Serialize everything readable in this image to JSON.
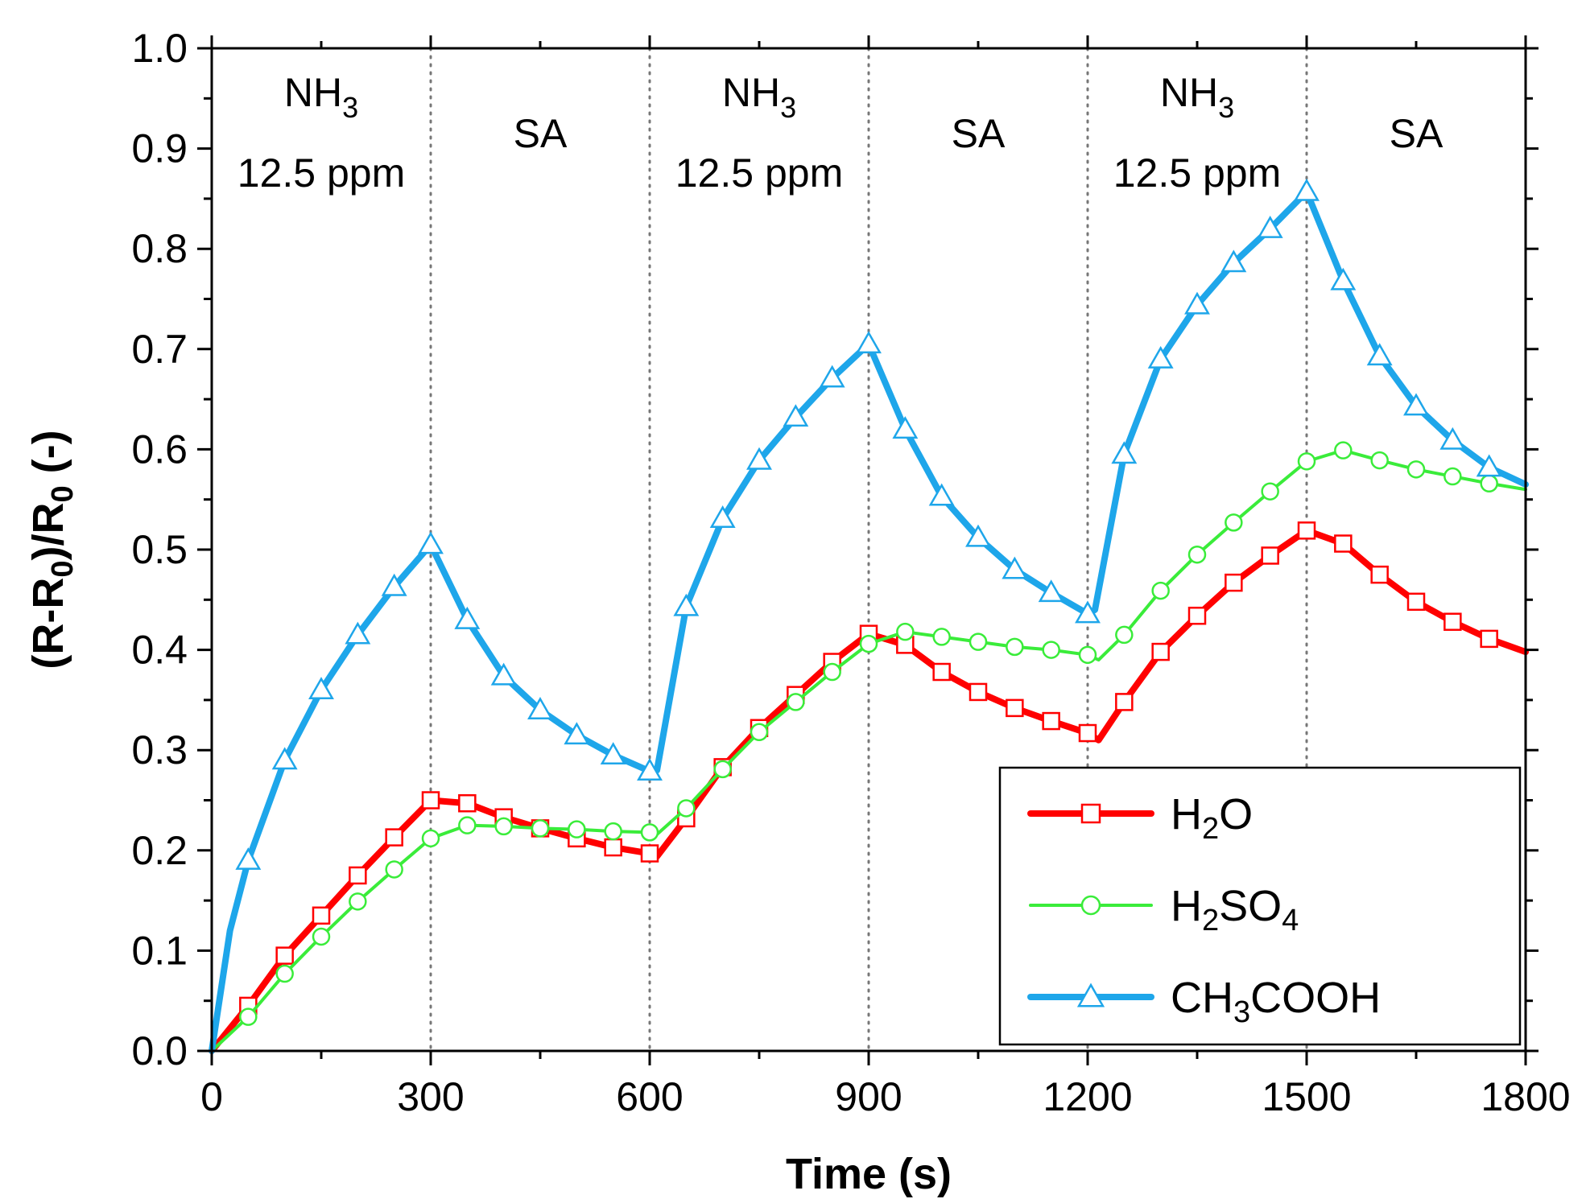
{
  "chart_data": {
    "type": "line",
    "title": "",
    "xlabel": "Time (s)",
    "ylabel": {
      "parts": [
        "(R-R",
        "0",
        ")/R",
        "0",
        " (-)"
      ]
    },
    "xlim": [
      0,
      1800
    ],
    "ylim": [
      0,
      1.0
    ],
    "xticks": [
      "0",
      "300",
      "600",
      "900",
      "1200",
      "1500",
      "1800"
    ],
    "yticks": [
      "0.0",
      "0.1",
      "0.2",
      "0.3",
      "0.4",
      "0.5",
      "0.6",
      "0.7",
      "0.8",
      "0.9",
      "1.0"
    ],
    "phase_boundaries": [
      300,
      600,
      900,
      1200,
      1500
    ],
    "phases": [
      {
        "gas": "NH",
        "sub": "3",
        "conc": "12.5 ppm",
        "x": 150
      },
      {
        "gas": "SA",
        "sub": "",
        "conc": "",
        "x": 450
      },
      {
        "gas": "NH",
        "sub": "3",
        "conc": "12.5 ppm",
        "x": 750
      },
      {
        "gas": "SA",
        "sub": "",
        "conc": "",
        "x": 1050
      },
      {
        "gas": "NH",
        "sub": "3",
        "conc": "12.5 ppm",
        "x": 1350
      },
      {
        "gas": "SA",
        "sub": "",
        "conc": "",
        "x": 1650
      }
    ],
    "legend_position": "lower-right",
    "series": [
      {
        "name": "H2O",
        "label_parts": [
          "H",
          "2",
          "O"
        ],
        "color": "#ff0000",
        "marker": "square",
        "x": [
          0,
          50,
          100,
          150,
          200,
          250,
          300,
          350,
          400,
          450,
          500,
          550,
          600,
          610,
          650,
          700,
          750,
          800,
          850,
          900,
          950,
          1000,
          1050,
          1100,
          1150,
          1200,
          1215,
          1250,
          1300,
          1350,
          1400,
          1450,
          1500,
          1550,
          1600,
          1650,
          1700,
          1750,
          1800
        ],
        "values": [
          0.0,
          0.045,
          0.095,
          0.135,
          0.175,
          0.213,
          0.25,
          0.247,
          0.233,
          0.222,
          0.212,
          0.203,
          0.197,
          0.194,
          0.232,
          0.283,
          0.322,
          0.355,
          0.388,
          0.416,
          0.405,
          0.378,
          0.358,
          0.342,
          0.329,
          0.317,
          0.31,
          0.348,
          0.398,
          0.434,
          0.467,
          0.494,
          0.519,
          0.506,
          0.475,
          0.448,
          0.428,
          0.411,
          0.398
        ]
      },
      {
        "name": "H2SO4",
        "label_parts": [
          "H",
          "2",
          "SO",
          "4"
        ],
        "color": "#3aec3a",
        "marker": "circle",
        "x": [
          0,
          50,
          100,
          150,
          200,
          250,
          300,
          350,
          400,
          450,
          500,
          550,
          600,
          610,
          650,
          700,
          750,
          800,
          850,
          900,
          950,
          1000,
          1050,
          1100,
          1150,
          1200,
          1215,
          1250,
          1300,
          1350,
          1400,
          1450,
          1500,
          1550,
          1600,
          1650,
          1700,
          1750,
          1800
        ],
        "values": [
          0.0,
          0.034,
          0.077,
          0.114,
          0.149,
          0.181,
          0.212,
          0.225,
          0.224,
          0.222,
          0.221,
          0.219,
          0.218,
          0.216,
          0.242,
          0.281,
          0.318,
          0.348,
          0.378,
          0.406,
          0.418,
          0.413,
          0.408,
          0.403,
          0.4,
          0.395,
          0.39,
          0.415,
          0.459,
          0.495,
          0.527,
          0.558,
          0.588,
          0.599,
          0.589,
          0.58,
          0.573,
          0.566,
          0.56
        ]
      },
      {
        "name": "CH3COOH",
        "label_parts": [
          "CH",
          "3",
          "COOH"
        ],
        "color": "#1ea6ea",
        "marker": "triangle",
        "x": [
          0,
          25,
          50,
          100,
          150,
          200,
          250,
          300,
          350,
          400,
          450,
          500,
          550,
          600,
          610,
          650,
          700,
          750,
          800,
          850,
          900,
          950,
          1000,
          1050,
          1100,
          1150,
          1200,
          1210,
          1250,
          1300,
          1350,
          1400,
          1450,
          1500,
          1550,
          1600,
          1650,
          1700,
          1750,
          1800
        ],
        "values": [
          0.0,
          0.12,
          0.19,
          0.29,
          0.36,
          0.415,
          0.463,
          0.505,
          0.43,
          0.374,
          0.34,
          0.315,
          0.295,
          0.279,
          0.28,
          0.443,
          0.531,
          0.589,
          0.632,
          0.671,
          0.705,
          0.62,
          0.553,
          0.512,
          0.48,
          0.457,
          0.436,
          0.44,
          0.595,
          0.69,
          0.744,
          0.786,
          0.82,
          0.857,
          0.768,
          0.693,
          0.643,
          0.609,
          0.582,
          0.565
        ]
      }
    ]
  }
}
